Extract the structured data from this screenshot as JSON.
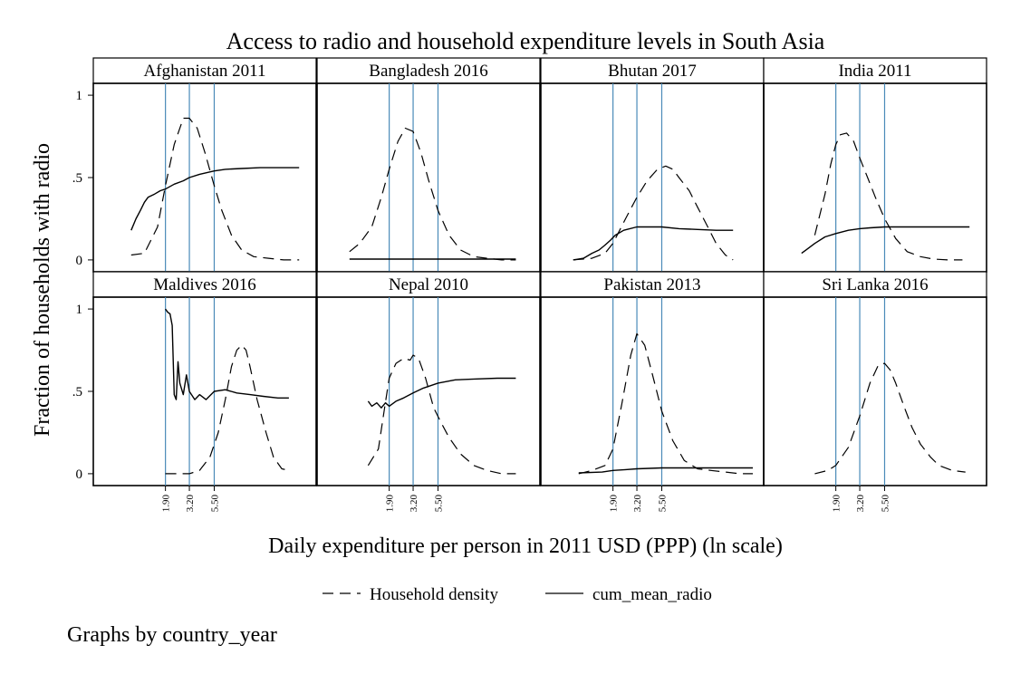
{
  "chart_data": {
    "type": "line",
    "title": "Access to radio and household expenditure levels in South Asia",
    "xlabel": "Daily expenditure per person in 2011 USD (PPP) (ln scale)",
    "ylabel": "Fraction of households with radio",
    "note": "Graphs by country_year",
    "x_scale": "log",
    "x_ticks": [
      "1.90",
      "3.20",
      "5.50"
    ],
    "x_tick_values": [
      1.9,
      3.2,
      5.5
    ],
    "xlim": [
      0.5,
      40
    ],
    "y_ticks": [
      "0",
      ".5",
      "1"
    ],
    "y_tick_values": [
      0,
      0.5,
      1
    ],
    "ylim": [
      -0.05,
      1.05
    ],
    "grid": false,
    "reference_line_color": "#4a8ab8",
    "legend": {
      "position": "bottom",
      "entries": [
        {
          "label": "Household density",
          "style": "dashed"
        },
        {
          "label": "cum_mean_radio",
          "style": "solid"
        }
      ]
    },
    "panels": [
      {
        "title": "Afghanistan 2011",
        "series": [
          {
            "name": "Household density",
            "x": [
              0.9,
              1.2,
              1.6,
              1.9,
              2.3,
              2.8,
              3.2,
              3.8,
              4.5,
              5.5,
              6.5,
              8,
              10,
              13,
              18,
              25,
              35
            ],
            "y": [
              0.03,
              0.04,
              0.2,
              0.45,
              0.7,
              0.86,
              0.86,
              0.8,
              0.65,
              0.45,
              0.3,
              0.15,
              0.06,
              0.02,
              0.01,
              0,
              0
            ]
          },
          {
            "name": "cum_mean_radio",
            "x": [
              0.9,
              1.0,
              1.1,
              1.2,
              1.3,
              1.5,
              1.7,
              1.9,
              2.3,
              2.8,
              3.2,
              4,
              5.5,
              7,
              10,
              15,
              25,
              35
            ],
            "y": [
              0.18,
              0.25,
              0.3,
              0.35,
              0.38,
              0.4,
              0.42,
              0.43,
              0.46,
              0.48,
              0.5,
              0.52,
              0.54,
              0.55,
              0.555,
              0.56,
              0.56,
              0.56
            ]
          }
        ]
      },
      {
        "title": "Bangladesh 2016",
        "series": [
          {
            "name": "Household density",
            "x": [
              0.8,
              1.0,
              1.3,
              1.6,
              1.9,
              2.3,
              2.7,
              3.2,
              3.8,
              4.5,
              5.5,
              7,
              9,
              12,
              16,
              22,
              30
            ],
            "y": [
              0.05,
              0.1,
              0.2,
              0.38,
              0.55,
              0.72,
              0.8,
              0.78,
              0.65,
              0.48,
              0.3,
              0.15,
              0.06,
              0.02,
              0.01,
              0,
              0
            ]
          },
          {
            "name": "cum_mean_radio",
            "x": [
              0.8,
              1.9,
              3.2,
              5.5,
              10,
              20,
              30
            ],
            "y": [
              0.005,
              0.005,
              0.005,
              0.005,
              0.005,
              0.005,
              0.005
            ]
          }
        ]
      },
      {
        "title": "Bhutan 2017",
        "series": [
          {
            "name": "Household density",
            "x": [
              0.8,
              1.2,
              1.6,
              1.9,
              2.5,
              3.2,
              4,
              5,
              6,
              7,
              8,
              10,
              12,
              15,
              18,
              22,
              26
            ],
            "y": [
              0,
              0.01,
              0.04,
              0.1,
              0.25,
              0.38,
              0.48,
              0.55,
              0.57,
              0.55,
              0.5,
              0.42,
              0.32,
              0.2,
              0.1,
              0.03,
              0
            ]
          },
          {
            "name": "cum_mean_radio",
            "x": [
              0.8,
              1.0,
              1.2,
              1.4,
              1.6,
              1.8,
              2.0,
              2.4,
              3.2,
              4,
              5.5,
              8,
              12,
              18,
              26
            ],
            "y": [
              0.0,
              0.01,
              0.04,
              0.06,
              0.09,
              0.12,
              0.15,
              0.18,
              0.2,
              0.2,
              0.2,
              0.19,
              0.185,
              0.18,
              0.18
            ]
          }
        ]
      },
      {
        "title": "India 2011",
        "series": [
          {
            "name": "Household density",
            "x": [
              1.2,
              1.5,
              1.7,
              1.9,
              2.1,
              2.4,
              2.8,
              3.2,
              3.8,
              4.5,
              5.5,
              7,
              9,
              12,
              16,
              22,
              30
            ],
            "y": [
              0.15,
              0.4,
              0.58,
              0.7,
              0.76,
              0.77,
              0.72,
              0.62,
              0.5,
              0.38,
              0.25,
              0.13,
              0.05,
              0.02,
              0.005,
              0,
              0
            ]
          },
          {
            "name": "cum_mean_radio",
            "x": [
              0.9,
              1.2,
              1.5,
              1.9,
              2.5,
              3.2,
              4,
              5.5,
              10,
              20,
              35
            ],
            "y": [
              0.04,
              0.1,
              0.14,
              0.16,
              0.18,
              0.19,
              0.195,
              0.2,
              0.2,
              0.2,
              0.2
            ]
          }
        ]
      },
      {
        "title": "Maldives 2016",
        "series": [
          {
            "name": "Household density",
            "x": [
              1.9,
              2.5,
              3.2,
              4,
              5,
              6,
              7,
              8,
              9,
              10,
              11,
              12,
              14,
              17,
              20,
              24,
              28
            ],
            "y": [
              0,
              0,
              0,
              0.02,
              0.1,
              0.25,
              0.45,
              0.65,
              0.75,
              0.78,
              0.75,
              0.65,
              0.45,
              0.25,
              0.1,
              0.03,
              0.02
            ]
          },
          {
            "name": "cum_mean_radio",
            "x": [
              1.9,
              2.0,
              2.1,
              2.2,
              2.3,
              2.4,
              2.5,
              2.6,
              2.8,
              3.0,
              3.2,
              3.6,
              4.0,
              4.6,
              5.5,
              7,
              9,
              12,
              16,
              22,
              28
            ],
            "y": [
              1.0,
              0.98,
              0.97,
              0.9,
              0.48,
              0.45,
              0.68,
              0.55,
              0.48,
              0.6,
              0.5,
              0.45,
              0.48,
              0.45,
              0.5,
              0.51,
              0.49,
              0.48,
              0.47,
              0.46,
              0.46
            ]
          }
        ]
      },
      {
        "title": "Nepal 2010",
        "series": [
          {
            "name": "Household density",
            "x": [
              1.2,
              1.5,
              1.7,
              1.9,
              2.2,
              2.6,
              3.0,
              3.2,
              3.6,
              4.2,
              5,
              6,
              7,
              9,
              12,
              16,
              22,
              30
            ],
            "y": [
              0.05,
              0.15,
              0.38,
              0.58,
              0.67,
              0.7,
              0.69,
              0.72,
              0.7,
              0.58,
              0.4,
              0.3,
              0.22,
              0.12,
              0.05,
              0.02,
              0,
              0
            ]
          },
          {
            "name": "cum_mean_radio",
            "x": [
              1.2,
              1.3,
              1.45,
              1.6,
              1.75,
              1.9,
              2.2,
              2.6,
              3.2,
              4,
              5.5,
              8,
              12,
              20,
              30
            ],
            "y": [
              0.44,
              0.41,
              0.43,
              0.4,
              0.43,
              0.41,
              0.44,
              0.46,
              0.49,
              0.52,
              0.55,
              0.57,
              0.575,
              0.58,
              0.58
            ]
          }
        ]
      },
      {
        "title": "Pakistan 2013",
        "series": [
          {
            "name": "Household density",
            "x": [
              0.9,
              1.2,
              1.6,
              1.9,
              2.3,
              2.8,
              3.2,
              3.8,
              4.5,
              5.5,
              7,
              9,
              12,
              16,
              22,
              30,
              40
            ],
            "y": [
              0,
              0.02,
              0.05,
              0.15,
              0.42,
              0.72,
              0.85,
              0.78,
              0.6,
              0.38,
              0.2,
              0.08,
              0.03,
              0.02,
              0.01,
              0,
              0
            ]
          },
          {
            "name": "cum_mean_radio",
            "x": [
              0.9,
              1.5,
              1.9,
              2.5,
              3.2,
              5.5,
              10,
              20,
              40
            ],
            "y": [
              0.005,
              0.01,
              0.02,
              0.025,
              0.03,
              0.035,
              0.035,
              0.035,
              0.035
            ]
          }
        ]
      },
      {
        "title": "Sri Lanka 2016",
        "series": [
          {
            "name": "Household density",
            "x": [
              1.2,
              1.6,
              1.9,
              2.5,
              3.2,
              4,
              4.8,
              5.5,
              6.2,
              7,
              8.5,
              10,
              12,
              15,
              18,
              24,
              32
            ],
            "y": [
              0,
              0.02,
              0.05,
              0.16,
              0.35,
              0.55,
              0.66,
              0.67,
              0.63,
              0.55,
              0.4,
              0.28,
              0.18,
              0.1,
              0.05,
              0.02,
              0.01
            ]
          }
        ]
      }
    ]
  }
}
